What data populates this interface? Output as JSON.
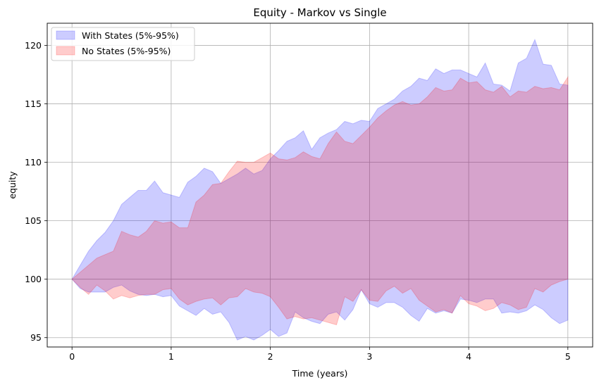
{
  "chart_data": {
    "type": "area",
    "title": "Equity - Markov vs Single",
    "xlabel": "Time (years)",
    "ylabel": "equity",
    "xlim": [
      -0.25,
      5.25
    ],
    "ylim": [
      94.2,
      121.9
    ],
    "xticks": [
      0,
      1,
      2,
      3,
      4,
      5
    ],
    "yticks": [
      95,
      100,
      105,
      110,
      115,
      120
    ],
    "grid": true,
    "legend_position": "top-left",
    "series": [
      {
        "name": "With States (5%-95%)",
        "color": "#0000ff",
        "opacity": 0.2,
        "x": [
          0,
          0.083,
          0.167,
          0.25,
          0.333,
          0.417,
          0.5,
          0.583,
          0.667,
          0.75,
          0.833,
          0.917,
          1.0,
          1.083,
          1.167,
          1.25,
          1.333,
          1.417,
          1.5,
          1.583,
          1.667,
          1.75,
          1.833,
          1.917,
          2.0,
          2.083,
          2.167,
          2.25,
          2.333,
          2.417,
          2.5,
          2.583,
          2.667,
          2.75,
          2.833,
          2.917,
          3.0,
          3.083,
          3.167,
          3.25,
          3.333,
          3.417,
          3.5,
          3.583,
          3.667,
          3.75,
          3.833,
          3.917,
          4.0,
          4.083,
          4.167,
          4.25,
          4.333,
          4.417,
          4.5,
          4.583,
          4.667,
          4.75,
          4.833,
          4.917,
          5.0
        ],
        "upper": [
          100.0,
          101.2,
          102.4,
          103.3,
          104.0,
          105.0,
          106.4,
          107.0,
          107.6,
          107.6,
          108.4,
          107.4,
          107.2,
          107.0,
          108.3,
          108.8,
          109.5,
          109.2,
          108.2,
          108.6,
          109.0,
          109.5,
          109.0,
          109.3,
          110.3,
          111.0,
          111.8,
          112.1,
          112.7,
          111.1,
          112.1,
          112.5,
          112.8,
          113.5,
          113.3,
          113.6,
          113.5,
          114.6,
          115.0,
          115.4,
          116.1,
          116.5,
          117.2,
          117.0,
          118.0,
          117.6,
          117.9,
          117.9,
          117.6,
          117.3,
          118.5,
          116.7,
          116.6,
          116.1,
          118.5,
          118.9,
          120.5,
          118.4,
          118.3,
          116.7,
          116.6
        ],
        "lower": [
          100.0,
          99.2,
          98.9,
          98.9,
          98.9,
          99.3,
          99.5,
          99.0,
          98.7,
          98.6,
          98.7,
          98.5,
          98.6,
          97.7,
          97.3,
          96.9,
          97.5,
          97.0,
          97.2,
          96.3,
          94.8,
          95.1,
          94.8,
          95.2,
          95.7,
          95.1,
          95.4,
          97.2,
          96.7,
          96.4,
          96.2,
          97.0,
          97.2,
          96.5,
          97.4,
          99.1,
          97.9,
          97.6,
          98.0,
          98.0,
          97.6,
          96.9,
          96.4,
          97.5,
          97.1,
          97.3,
          97.1,
          98.3,
          98.2,
          98.0,
          98.3,
          98.3,
          97.1,
          97.2,
          97.1,
          97.3,
          97.8,
          97.4,
          96.7,
          96.2,
          96.5
        ]
      },
      {
        "name": "No States (5%-95%)",
        "color": "#ff0000",
        "opacity": 0.2,
        "x": [
          0,
          0.083,
          0.167,
          0.25,
          0.333,
          0.417,
          0.5,
          0.583,
          0.667,
          0.75,
          0.833,
          0.917,
          1.0,
          1.083,
          1.167,
          1.25,
          1.333,
          1.417,
          1.5,
          1.583,
          1.667,
          1.75,
          1.833,
          1.917,
          2.0,
          2.083,
          2.167,
          2.25,
          2.333,
          2.417,
          2.5,
          2.583,
          2.667,
          2.75,
          2.833,
          2.917,
          3.0,
          3.083,
          3.167,
          3.25,
          3.333,
          3.417,
          3.5,
          3.583,
          3.667,
          3.75,
          3.833,
          3.917,
          4.0,
          4.083,
          4.167,
          4.25,
          4.333,
          4.417,
          4.5,
          4.583,
          4.667,
          4.75,
          4.833,
          4.917,
          5.0
        ],
        "upper": [
          100.0,
          100.6,
          101.2,
          101.8,
          102.1,
          102.4,
          104.1,
          103.8,
          103.6,
          104.1,
          105.0,
          104.8,
          104.9,
          104.4,
          104.4,
          106.6,
          107.2,
          108.1,
          108.2,
          109.2,
          110.1,
          110.0,
          110.0,
          110.4,
          110.8,
          110.3,
          110.2,
          110.4,
          110.9,
          110.5,
          110.3,
          111.6,
          112.6,
          111.8,
          111.6,
          112.3,
          113.0,
          113.8,
          114.4,
          114.9,
          115.2,
          114.9,
          115.0,
          115.6,
          116.4,
          116.1,
          116.2,
          117.2,
          116.8,
          116.9,
          116.2,
          116.0,
          116.5,
          115.6,
          116.1,
          116.0,
          116.5,
          116.3,
          116.4,
          116.2,
          117.3
        ],
        "lower": [
          100.0,
          99.3,
          98.7,
          99.5,
          99.0,
          98.3,
          98.6,
          98.4,
          98.6,
          98.7,
          98.7,
          99.1,
          99.2,
          98.3,
          97.8,
          98.1,
          98.3,
          98.4,
          97.8,
          98.4,
          98.5,
          99.2,
          98.9,
          98.8,
          98.5,
          97.6,
          96.6,
          96.8,
          96.6,
          96.7,
          96.5,
          96.3,
          96.1,
          98.5,
          98.1,
          99.1,
          98.2,
          98.1,
          99.0,
          99.4,
          98.8,
          99.2,
          98.2,
          97.7,
          97.2,
          97.4,
          97.1,
          98.6,
          97.9,
          97.7,
          97.3,
          97.5,
          98.0,
          97.8,
          97.4,
          97.6,
          99.2,
          98.9,
          99.5,
          99.8,
          100.0
        ]
      }
    ]
  }
}
